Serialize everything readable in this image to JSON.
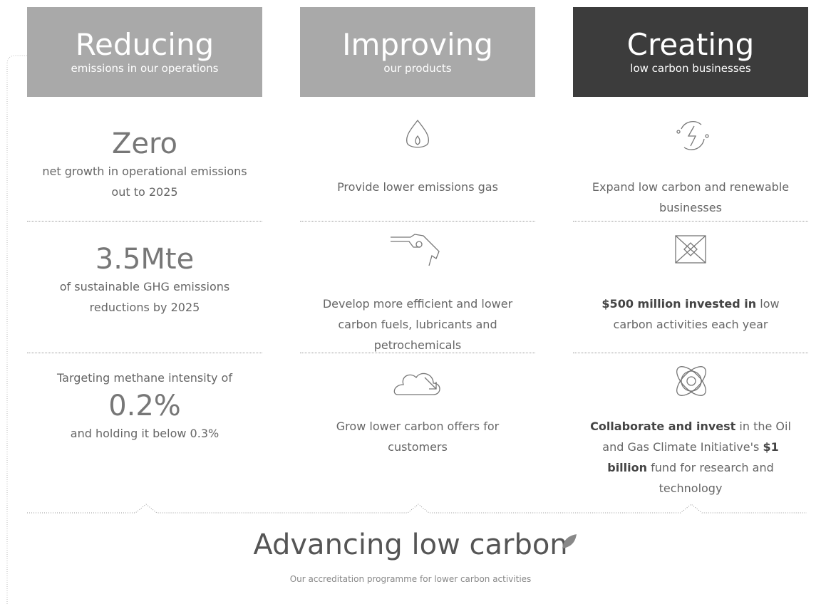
{
  "columns": [
    {
      "title": "Reducing",
      "subtitle": "emissions in our operations",
      "dark": false,
      "items": [
        {
          "big": "Zero",
          "parts": [
            {
              "text": "net growth in operational emissions out to 2025",
              "bold": false
            }
          ]
        },
        {
          "big": "3.5Mte",
          "parts": [
            {
              "text": "of sustainable GHG emissions reductions by 2025",
              "bold": false
            }
          ]
        },
        {
          "pre": "Targeting methane intensity of",
          "big": "0.2%",
          "parts": [
            {
              "text": "and holding it below 0.3%",
              "bold": false
            }
          ]
        }
      ]
    },
    {
      "title": "Improving",
      "subtitle": "our products",
      "dark": false,
      "items": [
        {
          "parts": [
            {
              "text": "Provide lower emissions gas",
              "bold": false
            }
          ]
        },
        {
          "parts": [
            {
              "text": "Develop more efficient and lower carbon fuels, lubricants and petrochemicals",
              "bold": false
            }
          ]
        },
        {
          "parts": [
            {
              "text": "Grow lower carbon offers for customers",
              "bold": false
            }
          ]
        }
      ]
    },
    {
      "title": "Creating",
      "subtitle": "low carbon businesses",
      "dark": true,
      "items": [
        {
          "parts": [
            {
              "text": "Expand low carbon and renewable businesses",
              "bold": false
            }
          ]
        },
        {
          "parts": [
            {
              "text": "$500 million invested in",
              "bold": true
            },
            {
              "text": " low carbon activities each year",
              "bold": false
            }
          ]
        },
        {
          "parts": [
            {
              "text": "Collaborate and invest",
              "bold": true
            },
            {
              "text": " in the Oil and Gas Climate Initiative's ",
              "bold": false
            },
            {
              "text": "$1 billion",
              "bold": true
            },
            {
              "text": " fund for research and technology",
              "bold": false
            }
          ]
        }
      ]
    }
  ],
  "footer": {
    "title": "Advancing low carbon",
    "subtitle": "Our accreditation programme for lower carbon activities"
  }
}
